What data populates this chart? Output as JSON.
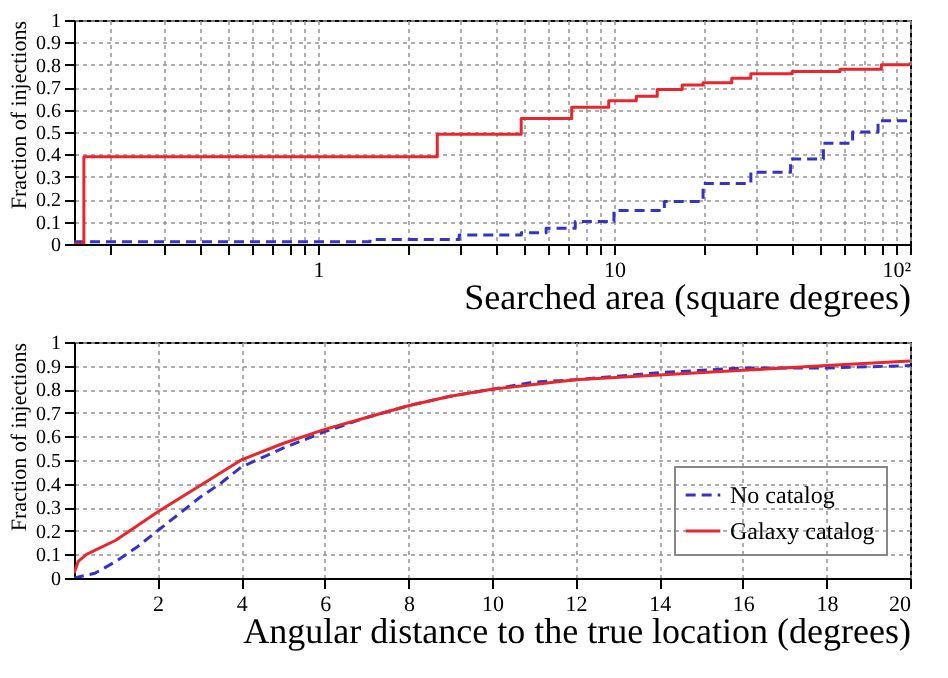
{
  "chart_data": [
    {
      "type": "step",
      "xlabel": "Searched area (square degrees)",
      "ylabel": "Fraction of injections",
      "log": "x",
      "grid": true,
      "legend": false,
      "xlim": [
        0.15,
        100
      ],
      "xticks": [
        {
          "value": 0.2,
          "label": null
        },
        {
          "value": 0.3,
          "label": null
        },
        {
          "value": 0.4,
          "label": null
        },
        {
          "value": 0.5,
          "label": null
        },
        {
          "value": 0.6,
          "label": null
        },
        {
          "value": 0.7,
          "label": null
        },
        {
          "value": 0.8,
          "label": null
        },
        {
          "value": 0.9,
          "label": null
        },
        1,
        {
          "value": 2,
          "label": null
        },
        {
          "value": 3,
          "label": null
        },
        {
          "value": 4,
          "label": null
        },
        {
          "value": 5,
          "label": null
        },
        {
          "value": 6,
          "label": null
        },
        {
          "value": 7,
          "label": null
        },
        {
          "value": 8,
          "label": null
        },
        {
          "value": 9,
          "label": null
        },
        10,
        {
          "value": 20,
          "label": null
        },
        {
          "value": 30,
          "label": null
        },
        {
          "value": 40,
          "label": null
        },
        {
          "value": 50,
          "label": null
        },
        {
          "value": 60,
          "label": null
        },
        {
          "value": 70,
          "label": null
        },
        {
          "value": 80,
          "label": null
        },
        {
          "value": 90,
          "label": null
        },
        {
          "value": 100,
          "label": "10²"
        }
      ],
      "ylim": [
        0,
        1
      ],
      "yticks": [
        0,
        0.1,
        0.2,
        0.3,
        0.4,
        0.5,
        0.6,
        0.7,
        0.8,
        0.9,
        1
      ],
      "series": [
        {
          "color": "#3333cc",
          "line_style": "dashed",
          "x": [
            0.15,
            1.5,
            3,
            4.86,
            5.9,
            7.4,
            10,
            14.8,
            20,
            29,
            39.5,
            51,
            64,
            78,
            100
          ],
          "values": [
            0.01,
            0.02,
            0.04,
            0.05,
            0.07,
            0.1,
            0.15,
            0.19,
            0.27,
            0.32,
            0.38,
            0.45,
            0.5,
            0.55,
            0.56
          ]
        },
        {
          "color": "#e8262b",
          "line_style": "solid",
          "x": [
            0.15,
            0.162,
            2.53,
            4.86,
            7.2,
            9.6,
            11.9,
            14,
            17,
            20,
            25,
            29,
            40,
            58,
            80,
            100
          ],
          "values": [
            0,
            0.39,
            0.49,
            0.56,
            0.61,
            0.64,
            0.66,
            0.69,
            0.71,
            0.72,
            0.74,
            0.76,
            0.77,
            0.78,
            0.8,
            0.81
          ]
        }
      ]
    },
    {
      "type": "line",
      "xlabel": "Angular distance to the true location (degrees)",
      "ylabel": "Fraction of injections",
      "grid": true,
      "legend": "bottom right",
      "xlim": [
        0,
        20
      ],
      "xticks": [
        2,
        4,
        6,
        8,
        10,
        12,
        14,
        16,
        18,
        20
      ],
      "ylim": [
        0,
        1
      ],
      "yticks": [
        0,
        0.1,
        0.2,
        0.3,
        0.4,
        0.5,
        0.6,
        0.7,
        0.8,
        0.9,
        1
      ],
      "series": [
        {
          "name": "No catalog",
          "color": "#3333cc",
          "line_style": "dashed",
          "x": [
            0,
            0.5,
            1,
            1.5,
            2,
            2.5,
            3,
            3.5,
            4,
            4.5,
            5,
            6,
            7,
            8,
            9,
            10,
            11,
            12,
            14,
            16,
            18,
            20
          ],
          "values": [
            0,
            0.02,
            0.07,
            0.13,
            0.2,
            0.27,
            0.34,
            0.4,
            0.47,
            0.51,
            0.55,
            0.62,
            0.68,
            0.73,
            0.77,
            0.8,
            0.83,
            0.84,
            0.87,
            0.89,
            0.89,
            0.9
          ]
        },
        {
          "name": "Galaxy catalog",
          "color": "#e8262b",
          "line_style": "solid",
          "x": [
            0,
            0.1,
            0.3,
            1,
            2,
            3,
            4,
            5,
            6,
            7,
            8,
            9,
            10,
            11,
            12,
            14,
            16,
            18,
            20
          ],
          "values": [
            0.02,
            0.07,
            0.1,
            0.16,
            0.28,
            0.39,
            0.5,
            0.57,
            0.63,
            0.68,
            0.73,
            0.77,
            0.8,
            0.82,
            0.84,
            0.86,
            0.88,
            0.9,
            0.92
          ]
        }
      ]
    }
  ]
}
